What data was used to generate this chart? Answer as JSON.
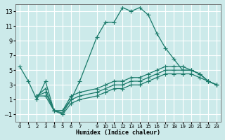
{
  "xlabel": "Humidex (Indice chaleur)",
  "bg_color": "#cceaea",
  "grid_color": "#b0d8d8",
  "line_color": "#1a7a6a",
  "xlim": [
    -0.5,
    23.5
  ],
  "ylim": [
    -2,
    14
  ],
  "yticks": [
    -1,
    1,
    3,
    5,
    7,
    9,
    11,
    13
  ],
  "xticks": [
    0,
    1,
    2,
    3,
    4,
    5,
    6,
    7,
    9,
    10,
    11,
    12,
    13,
    14,
    15,
    16,
    17,
    18,
    19,
    20,
    21,
    22,
    23
  ],
  "curve1_x": [
    0,
    1,
    2,
    3,
    4,
    5,
    6,
    7,
    9,
    10,
    11,
    12,
    13,
    14,
    15,
    16,
    17,
    18,
    19,
    20,
    21,
    22,
    23
  ],
  "curve1_y": [
    5.5,
    3.5,
    1.0,
    3.5,
    -0.5,
    -0.5,
    1.0,
    3.5,
    9.5,
    11.5,
    11.5,
    13.5,
    13.0,
    13.5,
    12.5,
    10.0,
    8.0,
    6.5,
    5.0,
    5.0,
    4.5,
    3.5,
    3.0
  ],
  "curve2_x": [
    2,
    3,
    4,
    5,
    6,
    7,
    9,
    10,
    11,
    12,
    13,
    14,
    15,
    16,
    17,
    18,
    19,
    20,
    21,
    22,
    23
  ],
  "curve2_y": [
    1.5,
    2.5,
    -0.5,
    -0.5,
    1.5,
    2.0,
    2.5,
    3.0,
    3.5,
    3.5,
    4.0,
    4.0,
    4.5,
    5.0,
    5.5,
    5.5,
    5.5,
    5.0,
    4.5,
    3.5,
    3.0
  ],
  "curve3_x": [
    2,
    3,
    4,
    5,
    6,
    7,
    9,
    10,
    11,
    12,
    13,
    14,
    15,
    16,
    17,
    18,
    19,
    20,
    21,
    22,
    23
  ],
  "curve3_y": [
    1.5,
    2.0,
    -0.5,
    -0.8,
    1.0,
    1.5,
    2.0,
    2.5,
    3.0,
    3.0,
    3.5,
    3.5,
    4.0,
    4.5,
    5.0,
    5.0,
    5.0,
    5.0,
    4.5,
    3.5,
    3.0
  ],
  "curve4_x": [
    2,
    3,
    4,
    5,
    6,
    7,
    9,
    10,
    11,
    12,
    13,
    14,
    15,
    16,
    17,
    18,
    19,
    20,
    21,
    22,
    23
  ],
  "curve4_y": [
    1.5,
    1.5,
    -0.5,
    -1.0,
    0.5,
    1.0,
    1.5,
    2.0,
    2.5,
    2.5,
    3.0,
    3.0,
    3.5,
    4.0,
    4.5,
    4.5,
    4.5,
    4.5,
    4.0,
    3.5,
    3.0
  ]
}
